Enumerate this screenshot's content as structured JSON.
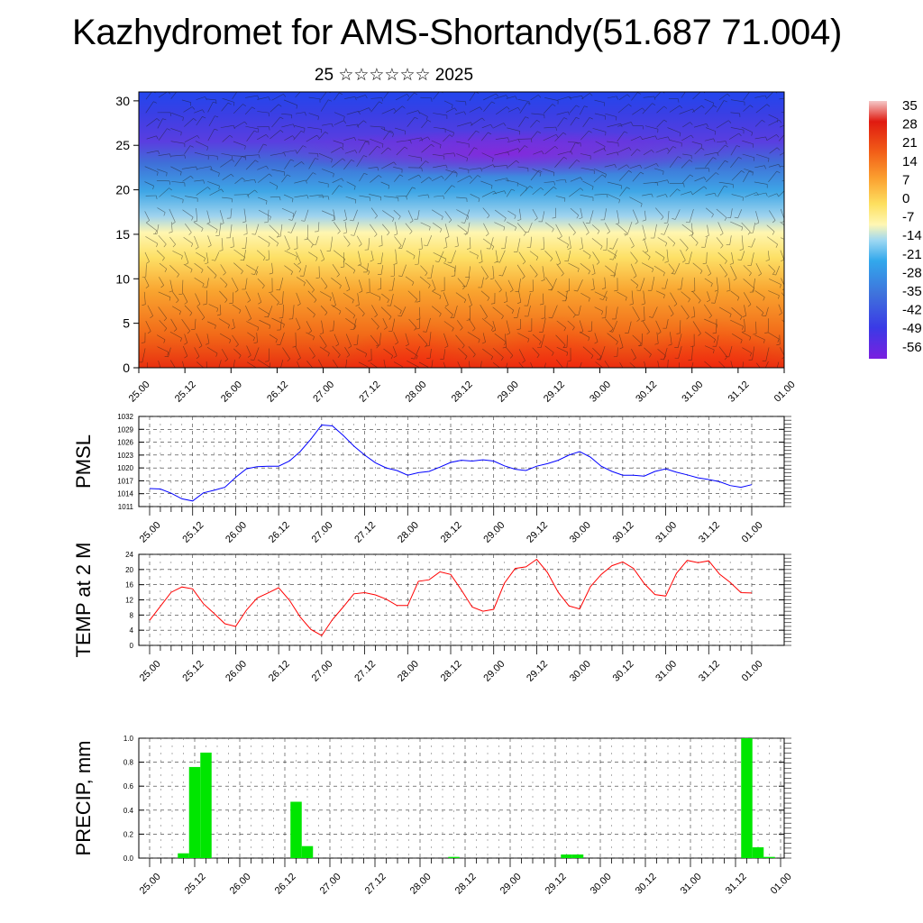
{
  "title": "Kazhydromet for AMS-Shortandy(51.687 71.004)",
  "subtitle": "25 ☆☆☆☆☆☆ 2025",
  "chart_data": [
    {
      "type": "heatmap",
      "x_ticks": [
        "25.00",
        "25.12",
        "26.00",
        "26.12",
        "27.00",
        "27.12",
        "28.00",
        "28.12",
        "29.00",
        "29.12",
        "30.00",
        "30.12",
        "31.00",
        "31.12",
        "01.00"
      ],
      "y_ticks": [
        0,
        5,
        10,
        15,
        20,
        25,
        30
      ],
      "ylim": [
        0,
        31
      ],
      "colorbar_labels": [
        "35",
        "28",
        "21",
        "14",
        "7",
        "0",
        "-7",
        "-14",
        "-21",
        "-28",
        "-35",
        "-42",
        "-49",
        "-56"
      ],
      "colors": {
        "warm": "#e81a10",
        "mid": "#ffef6a",
        "cold": "#2045e8",
        "coldest": "#8a28e0"
      }
    },
    {
      "type": "line",
      "ylabel": "PMSL",
      "ylim": [
        1011,
        1032
      ],
      "y_ticks": [
        1011,
        1014,
        1017,
        1020,
        1023,
        1026,
        1029,
        1032
      ],
      "x_ticks": [
        "25.00",
        "25.12",
        "26.00",
        "26.12",
        "27.00",
        "27.12",
        "28.00",
        "28.12",
        "29.00",
        "29.12",
        "30.00",
        "30.12",
        "31.00",
        "31.12",
        "01.00"
      ],
      "series": [
        {
          "color": "#0000ff",
          "values": [
            1015.2,
            1015.1,
            1014.1,
            1012.8,
            1012.3,
            1014.2,
            1014.8,
            1015.5,
            1017.8,
            1019.8,
            1020.3,
            1020.4,
            1020.4,
            1021.6,
            1023.8,
            1026.7,
            1030.0,
            1029.8,
            1027.6,
            1025.1,
            1023.0,
            1021.2,
            1020.0,
            1019.4,
            1018.3,
            1018.9,
            1019.2,
            1020.2,
            1021.3,
            1021.8,
            1021.6,
            1021.9,
            1021.6,
            1020.5,
            1019.7,
            1019.4,
            1020.4,
            1021.0,
            1021.8,
            1023.0,
            1023.8,
            1022.5,
            1020.4,
            1019.2,
            1018.3,
            1018.3,
            1018.1,
            1019.2,
            1019.8,
            1019.0,
            1018.4,
            1017.7,
            1017.3,
            1016.8,
            1015.9,
            1015.5,
            1016.1
          ]
        }
      ]
    },
    {
      "type": "line",
      "ylabel": "TEMP at 2 M",
      "ylim": [
        0,
        24
      ],
      "y_ticks": [
        0,
        4,
        8,
        12,
        16,
        20,
        24
      ],
      "x_ticks": [
        "25.00",
        "25.12",
        "26.00",
        "26.12",
        "27.00",
        "27.12",
        "28.00",
        "28.12",
        "29.00",
        "29.12",
        "30.00",
        "30.12",
        "31.00",
        "31.12",
        "01.00"
      ],
      "series": [
        {
          "color": "#ff0000",
          "values": [
            6.6,
            10.3,
            14.0,
            15.4,
            14.9,
            11.0,
            8.4,
            5.7,
            5.0,
            9.3,
            12.5,
            13.8,
            15.2,
            11.9,
            7.5,
            4.2,
            2.6,
            6.8,
            10.1,
            13.6,
            13.9,
            13.3,
            12.2,
            10.5,
            10.5,
            16.9,
            17.3,
            19.4,
            18.7,
            14.6,
            10.1,
            9.0,
            9.5,
            16.4,
            20.3,
            20.7,
            22.7,
            19.2,
            14.0,
            10.4,
            9.6,
            15.5,
            18.7,
            21.0,
            22.0,
            20.3,
            16.3,
            13.4,
            13.0,
            19.0,
            22.4,
            21.8,
            22.3,
            18.8,
            16.6,
            13.9,
            13.8
          ]
        }
      ]
    },
    {
      "type": "bar",
      "ylabel": "PRECIP, mm",
      "ylim": [
        0,
        1.0
      ],
      "y_ticks": [
        "0.0",
        "0.2",
        "0.4",
        "0.6",
        "0.8",
        "1.0"
      ],
      "x_ticks": [
        "25.00",
        "25.12",
        "26.00",
        "26.12",
        "27.00",
        "27.12",
        "28.00",
        "28.12",
        "29.00",
        "29.12",
        "30.00",
        "30.12",
        "31.00",
        "31.12",
        "01.00"
      ],
      "series": [
        {
          "color": "#00e600",
          "bars": [
            [
              3,
              0.04
            ],
            [
              4,
              0.76
            ],
            [
              5,
              0.88
            ],
            [
              13,
              0.47
            ],
            [
              14,
              0.1
            ],
            [
              27,
              0.01
            ],
            [
              37,
              0.03
            ],
            [
              38,
              0.03
            ],
            [
              53,
              1.0
            ],
            [
              54,
              0.09
            ],
            [
              55,
              0.01
            ]
          ]
        }
      ]
    }
  ]
}
